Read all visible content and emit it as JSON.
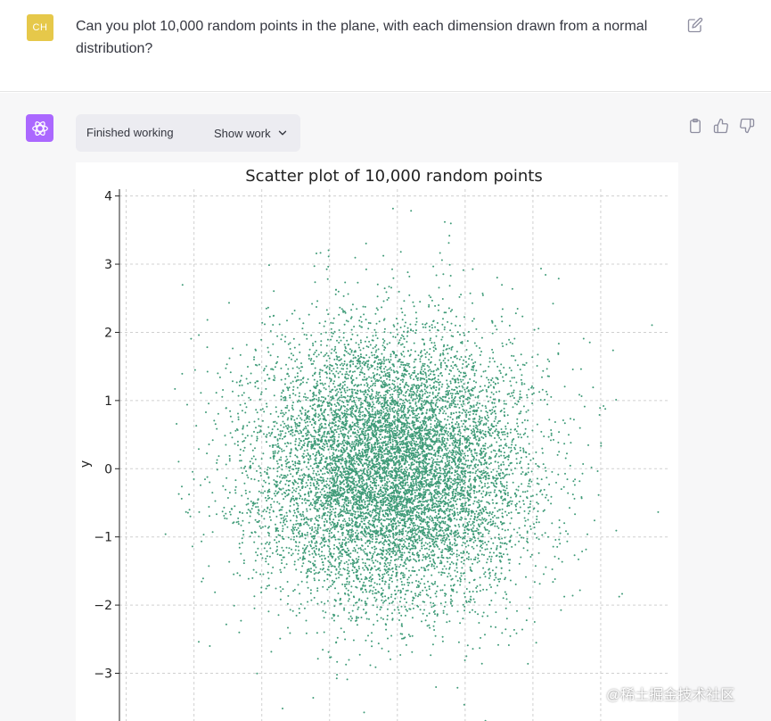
{
  "user": {
    "avatar_initials": "CH",
    "message": "Can you plot 10,000 random points in the plane, with each dimension drawn from a normal distribution?"
  },
  "assistant": {
    "status_label": "Finished working",
    "show_work_label": "Show work"
  },
  "icons": {
    "edit": "pencil-edit-icon",
    "copy": "clipboard-icon",
    "like": "thumbs-up-icon",
    "dislike": "thumbs-down-icon",
    "show_work": "chevron-down-icon"
  },
  "colors": {
    "accent_gpt": "#ab68ff",
    "user_avatar": "#e6c84a",
    "points": "#3f9b78"
  },
  "chart_data": {
    "type": "scatter",
    "title": "Scatter plot of 10,000 random points",
    "xlabel": "",
    "ylabel": "y",
    "n_points": 10000,
    "x_distribution": "normal(0,1)",
    "y_distribution": "normal(0,1)",
    "ylim": [
      -3.7,
      4.1
    ],
    "xlim": [
      -4.0,
      4.1
    ],
    "yticks": [
      "4",
      "3",
      "2",
      "1",
      "0",
      "−1",
      "−2",
      "−3"
    ],
    "ytick_values": [
      4,
      3,
      2,
      1,
      0,
      -1,
      -2,
      -3
    ],
    "x_grid_values": [
      -3.9,
      -2.9,
      -1.9,
      -0.9,
      0.1,
      1.1,
      2.1,
      3.1
    ],
    "grid": true,
    "point_color": "#3f9b78"
  },
  "watermark": "@稀土掘金技术社区"
}
